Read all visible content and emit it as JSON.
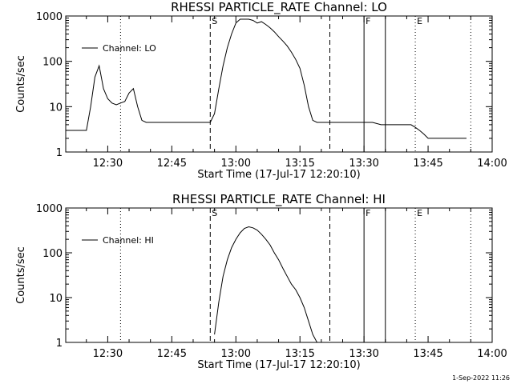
{
  "footer_text": "1-Sep-2022 11:26",
  "chart_data": [
    {
      "type": "line",
      "title": "RHESSI PARTICLE_RATE Channel: LO",
      "xlabel": "Start Time (17-Jul-17 12:20:10)",
      "ylabel": "Counts/sec",
      "y_scale": "log",
      "ylim": [
        1,
        1000
      ],
      "y_ticks": [
        "1",
        "10",
        "100",
        "1000"
      ],
      "xlim": [
        "12:20:10",
        "14:00"
      ],
      "x_ticks": [
        "12:30",
        "12:45",
        "13:00",
        "13:15",
        "13:30",
        "13:45",
        "14:00"
      ],
      "legend": "top-left",
      "series": [
        {
          "name": "Channel: LO",
          "x": [
            "12:20:10",
            "12:24",
            "12:25",
            "12:26",
            "12:27",
            "12:28",
            "12:29",
            "12:30",
            "12:31",
            "12:32",
            "12:33",
            "12:34",
            "12:35",
            "12:36",
            "12:37",
            "12:38",
            "12:39",
            "12:40",
            "12:42",
            "12:44",
            "12:46",
            "12:48",
            "12:50",
            "12:52",
            "12:54",
            "12:55",
            "12:56",
            "12:57",
            "12:58",
            "12:59",
            "13:00",
            "13:01",
            "13:02",
            "13:03",
            "13:04",
            "13:05",
            "13:06",
            "13:07",
            "13:08",
            "13:09",
            "13:10",
            "13:11",
            "13:12",
            "13:13",
            "13:14",
            "13:15",
            "13:16",
            "13:17",
            "13:18",
            "13:19",
            "13:20",
            "13:21",
            "13:22",
            "13:25",
            "13:28",
            "13:30",
            "13:32",
            "13:34",
            "13:36",
            "13:38",
            "13:40",
            "13:41",
            "13:42",
            "13:43",
            "13:44",
            "13:45",
            "13:46",
            "13:48",
            "13:50",
            "13:54"
          ],
          "y": [
            3,
            3,
            3,
            10,
            45,
            80,
            25,
            15,
            12,
            11,
            12,
            13,
            20,
            25,
            10,
            5,
            4.5,
            4.5,
            4.5,
            4.5,
            4.5,
            4.5,
            4.5,
            4.5,
            4.5,
            7,
            25,
            80,
            200,
            400,
            700,
            850,
            850,
            850,
            800,
            700,
            750,
            650,
            550,
            450,
            350,
            280,
            220,
            160,
            110,
            70,
            30,
            10,
            5,
            4.5,
            4.5,
            4.5,
            4.5,
            4.5,
            4.5,
            4.5,
            4.5,
            4,
            4,
            4,
            4,
            4,
            3.5,
            3,
            2.5,
            2,
            2,
            2,
            2,
            2
          ]
        }
      ],
      "markers": [
        {
          "label": "S",
          "style": "dashed",
          "time": "12:54"
        },
        {
          "label": "",
          "style": "dotted",
          "time": "12:33"
        },
        {
          "label": "",
          "style": "dashed",
          "time": "13:22"
        },
        {
          "label": "F",
          "style": "solid",
          "time": "13:30"
        },
        {
          "label": "",
          "style": "solid",
          "time": "13:35"
        },
        {
          "label": "E",
          "style": "dotted",
          "time": "13:42"
        },
        {
          "label": "",
          "style": "dotted",
          "time": "13:55"
        }
      ]
    },
    {
      "type": "line",
      "title": "RHESSI PARTICLE_RATE Channel: HI",
      "xlabel": "Start Time (17-Jul-17 12:20:10)",
      "ylabel": "Counts/sec",
      "y_scale": "log",
      "ylim": [
        1,
        1000
      ],
      "y_ticks": [
        "1",
        "10",
        "100",
        "1000"
      ],
      "xlim": [
        "12:20:10",
        "14:00"
      ],
      "x_ticks": [
        "12:30",
        "12:45",
        "13:00",
        "13:15",
        "13:30",
        "13:45",
        "14:00"
      ],
      "legend": "top-left",
      "series": [
        {
          "name": "Channel: HI",
          "x": [
            "12:55",
            "12:56",
            "12:57",
            "12:58",
            "12:59",
            "13:00",
            "13:01",
            "13:02",
            "13:03",
            "13:04",
            "13:05",
            "13:06",
            "13:07",
            "13:08",
            "13:09",
            "13:10",
            "13:11",
            "13:12",
            "13:13",
            "13:14",
            "13:15",
            "13:16",
            "13:17",
            "13:18",
            "13:19"
          ],
          "y": [
            1.5,
            8,
            30,
            70,
            130,
            200,
            280,
            350,
            380,
            360,
            320,
            260,
            200,
            150,
            100,
            70,
            45,
            30,
            20,
            15,
            10,
            6,
            3,
            1.5,
            1
          ]
        }
      ],
      "markers": [
        {
          "label": "S",
          "style": "dashed",
          "time": "12:54"
        },
        {
          "label": "",
          "style": "dotted",
          "time": "12:33"
        },
        {
          "label": "",
          "style": "dashed",
          "time": "13:22"
        },
        {
          "label": "F",
          "style": "solid",
          "time": "13:30"
        },
        {
          "label": "",
          "style": "solid",
          "time": "13:35"
        },
        {
          "label": "E",
          "style": "dotted",
          "time": "13:42"
        },
        {
          "label": "",
          "style": "dotted",
          "time": "13:55"
        }
      ]
    }
  ]
}
